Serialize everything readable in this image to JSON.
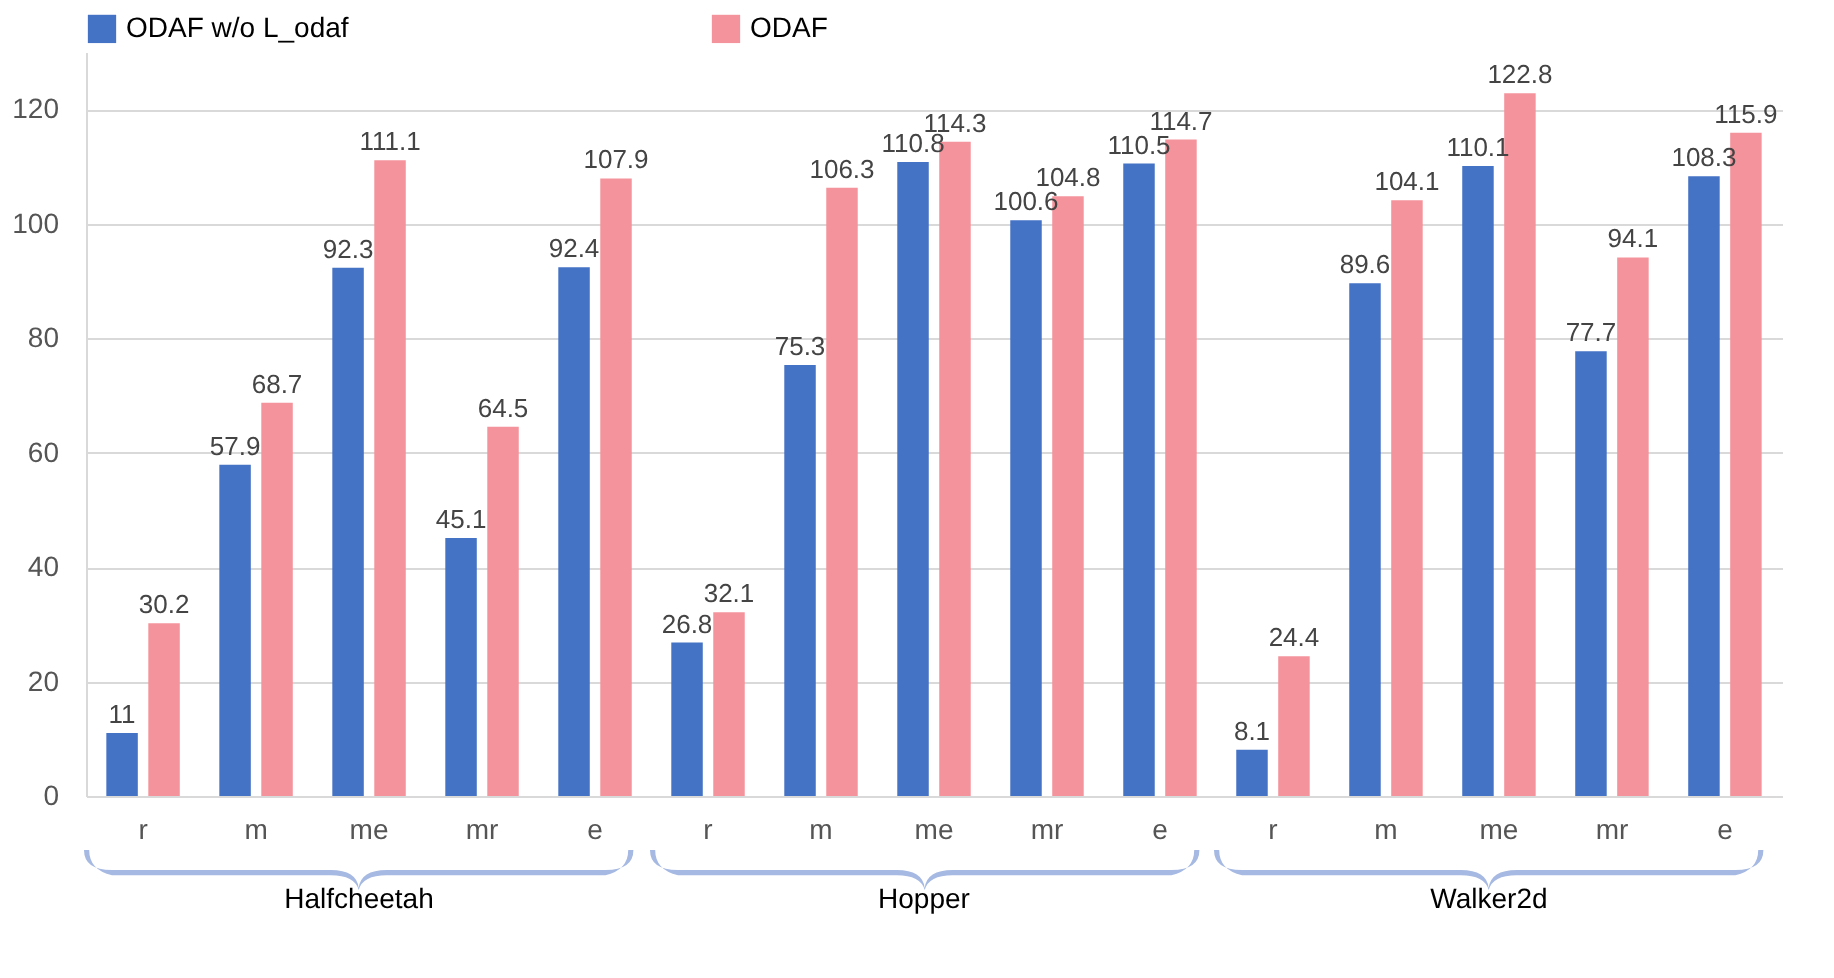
{
  "chart_data": {
    "type": "bar",
    "categories": [
      "r",
      "m",
      "me",
      "mr",
      "e",
      "r",
      "m",
      "me",
      "mr",
      "e",
      "r",
      "m",
      "me",
      "mr",
      "e"
    ],
    "series": [
      {
        "name": "ODAF w/o L_odaf",
        "color": "#4472c4",
        "values": [
          11,
          57.9,
          92.3,
          45.1,
          92.4,
          26.8,
          75.3,
          110.8,
          100.6,
          110.5,
          8.1,
          89.6,
          110.1,
          77.7,
          108.3
        ]
      },
      {
        "name": "ODAF",
        "color": "#f4939b",
        "values": [
          30.2,
          68.7,
          111.1,
          64.5,
          107.9,
          32.1,
          106.3,
          114.3,
          104.8,
          114.7,
          24.4,
          104.1,
          122.8,
          94.1,
          115.9
        ]
      }
    ],
    "ylim": [
      0,
      130
    ],
    "yticks": [
      0,
      20,
      40,
      60,
      80,
      100,
      120
    ],
    "grid": "y",
    "legend": "top left",
    "data_labels": true,
    "annotations": [
      "Halfcheetah",
      "Hopper",
      "Walker2d"
    ]
  }
}
